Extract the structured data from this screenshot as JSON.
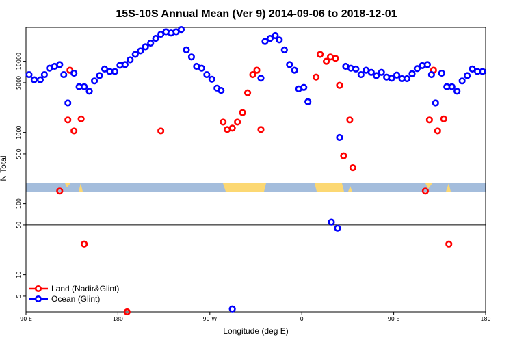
{
  "chart_data": {
    "type": "scatter",
    "title": "15S-10S Annual Mean (Ver 9)   2014-09-06 to 2018-12-01",
    "xlabel": "Longitude (deg E)",
    "ylabel": "N Total",
    "y_scale": "log",
    "x_range_label": [
      "90 E",
      "180",
      "90 W",
      "0",
      "90 E",
      "180"
    ],
    "x_ticks": [
      90,
      180,
      270,
      360,
      450,
      540
    ],
    "x_tick_labels": [
      "90 E",
      "180",
      "90 W",
      "0",
      "90 E",
      "180"
    ],
    "xlim": [
      90,
      540
    ],
    "ylim": [
      3,
      30000
    ],
    "y_ticks": [
      5,
      10,
      50,
      100,
      500,
      1000,
      5000,
      10000
    ],
    "y_tick_labels": [
      "5",
      "10",
      "50",
      "100",
      "500",
      "1000",
      "5000",
      "10000"
    ],
    "reference_line_y": 50,
    "legend": {
      "placement": "bottom-left"
    },
    "series": [
      {
        "name": "Land (Nadir&Glint)",
        "color": "#ff0000",
        "points": [
          [
            123,
            150
          ],
          [
            133,
            7500
          ],
          [
            131,
            1500
          ],
          [
            137,
            1050
          ],
          [
            144,
            1550
          ],
          [
            147,
            27
          ],
          [
            189,
            3
          ],
          [
            222,
            1050
          ],
          [
            283,
            1400
          ],
          [
            287,
            1100
          ],
          [
            292,
            1150
          ],
          [
            297,
            1400
          ],
          [
            302,
            1900
          ],
          [
            307,
            3600
          ],
          [
            312,
            6500
          ],
          [
            316,
            7500
          ],
          [
            320,
            1100
          ],
          [
            374,
            6000
          ],
          [
            378,
            12500
          ],
          [
            384,
            10000
          ],
          [
            388,
            11500
          ],
          [
            393,
            11000
          ],
          [
            397,
            4600
          ],
          [
            401,
            470
          ],
          [
            407,
            1500
          ],
          [
            410,
            320
          ],
          [
            481,
            150
          ],
          [
            485,
            1500
          ],
          [
            489,
            7500
          ],
          [
            493,
            1050
          ],
          [
            499,
            1550
          ],
          [
            504,
            27
          ]
        ]
      },
      {
        "name": "Ocean (Glint)",
        "color": "#0000ff",
        "points": [
          [
            93,
            6500
          ],
          [
            98,
            5500
          ],
          [
            104,
            5500
          ],
          [
            108,
            6500
          ],
          [
            113,
            8000
          ],
          [
            118,
            8500
          ],
          [
            123,
            9000
          ],
          [
            127,
            6500
          ],
          [
            131,
            2600
          ],
          [
            137,
            6800
          ],
          [
            142,
            4400
          ],
          [
            147,
            4400
          ],
          [
            152,
            3800
          ],
          [
            157,
            5300
          ],
          [
            162,
            6300
          ],
          [
            167,
            7800
          ],
          [
            172,
            7200
          ],
          [
            177,
            7200
          ],
          [
            182,
            8800
          ],
          [
            187,
            9000
          ],
          [
            192,
            10500
          ],
          [
            197,
            12500
          ],
          [
            202,
            14000
          ],
          [
            207,
            16000
          ],
          [
            212,
            18000
          ],
          [
            217,
            21000
          ],
          [
            222,
            24000
          ],
          [
            227,
            26000
          ],
          [
            232,
            25000
          ],
          [
            237,
            26000
          ],
          [
            242,
            28000
          ],
          [
            247,
            14500
          ],
          [
            252,
            11500
          ],
          [
            257,
            8500
          ],
          [
            262,
            8000
          ],
          [
            267,
            6500
          ],
          [
            272,
            5600
          ],
          [
            277,
            4200
          ],
          [
            281,
            3900
          ],
          [
            292,
            3.3
          ],
          [
            320,
            5800
          ],
          [
            324,
            19000
          ],
          [
            329,
            21000
          ],
          [
            334,
            23000
          ],
          [
            338,
            20000
          ],
          [
            343,
            14500
          ],
          [
            348,
            9000
          ],
          [
            353,
            7500
          ],
          [
            357,
            4100
          ],
          [
            362,
            4300
          ],
          [
            366,
            2700
          ],
          [
            389,
            55
          ],
          [
            395,
            45
          ],
          [
            397,
            850
          ],
          [
            403,
            8500
          ],
          [
            408,
            8000
          ],
          [
            413,
            7800
          ],
          [
            418,
            6500
          ],
          [
            423,
            7500
          ],
          [
            428,
            7000
          ],
          [
            433,
            6300
          ],
          [
            438,
            7000
          ],
          [
            443,
            6000
          ],
          [
            448,
            5800
          ],
          [
            453,
            6400
          ],
          [
            458,
            5700
          ],
          [
            463,
            5700
          ],
          [
            468,
            6700
          ],
          [
            473,
            7900
          ],
          [
            478,
            8700
          ],
          [
            483,
            9000
          ],
          [
            487,
            6500
          ],
          [
            491,
            2600
          ],
          [
            497,
            6800
          ],
          [
            502,
            4400
          ],
          [
            507,
            4400
          ],
          [
            512,
            3800
          ],
          [
            517,
            5300
          ],
          [
            522,
            6300
          ],
          [
            527,
            7800
          ],
          [
            532,
            7200
          ],
          [
            537,
            7200
          ]
        ]
      }
    ]
  }
}
